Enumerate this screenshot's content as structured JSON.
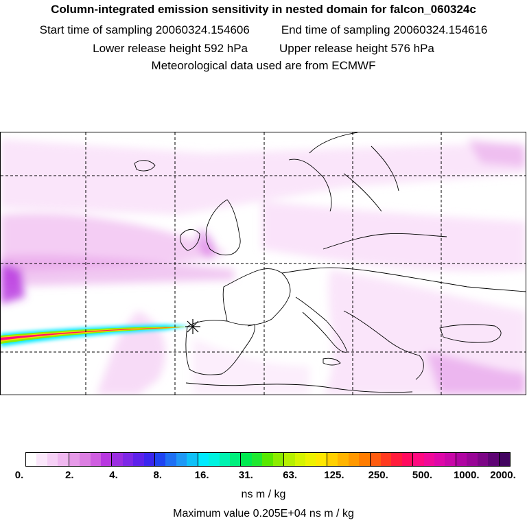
{
  "title": {
    "line1": "Column-integrated emission sensitivity in nested domain for falcon_060324c",
    "start_time": "Start time of sampling 20060324.154606",
    "end_time": "End time of sampling 20060324.154616",
    "lower_height": "Lower release height  592 hPa",
    "upper_height": "Upper release height  576 hPa",
    "met_data": "Meteorological data used are from ECMWF"
  },
  "colorbar": {
    "tick_labels": [
      "0.",
      "2.",
      "4.",
      "8.",
      "16.",
      "31.",
      "63.",
      "125.",
      "250.",
      "500.",
      "1000.",
      "2000."
    ],
    "colors": [
      "#ffffff",
      "#fbe7fb",
      "#f6d0f6",
      "#f0b8f0",
      "#e69ae8",
      "#dc7fe2",
      "#cf5ee0",
      "#b838e0",
      "#9b2ee0",
      "#7d28e6",
      "#5d22ea",
      "#3a26ee",
      "#1f44f2",
      "#1f70f4",
      "#1f98f6",
      "#10c0f8",
      "#00eaff",
      "#00f2e0",
      "#00f2b0",
      "#00ef7c",
      "#00ea50",
      "#20e830",
      "#58e800",
      "#8cec00",
      "#b6f000",
      "#d6f400",
      "#eef200",
      "#ffe800",
      "#ffd000",
      "#ffb400",
      "#ff9800",
      "#ff7c00",
      "#ff5c10",
      "#ff3a20",
      "#ff1c3c",
      "#ff0a5e",
      "#ff0a80",
      "#f00a98",
      "#de08a8",
      "#c808a8",
      "#b006a2",
      "#980696",
      "#7c0686",
      "#5e0474",
      "#420460"
    ],
    "unit": "ns m / kg"
  },
  "max_value": "Maximum value  0.205E+04 ns m / kg"
}
